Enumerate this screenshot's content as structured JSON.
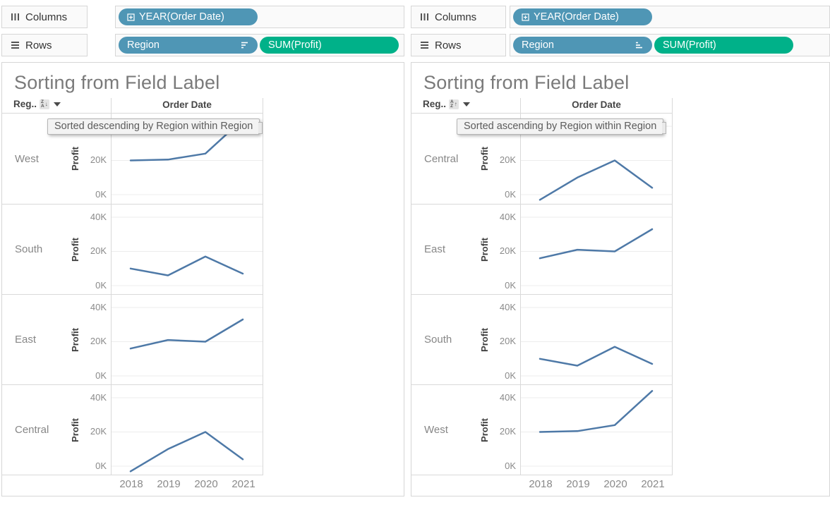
{
  "colors": {
    "pill_blue": "#4f96b5",
    "pill_green": "#00b189",
    "line": "#4e79a7",
    "grid": "#ececec"
  },
  "shelves": {
    "columns_label": "Columns",
    "rows_label": "Rows",
    "year_pill": "YEAR(Order Date)",
    "region_pill": "Region",
    "profit_pill": "SUM(Profit)"
  },
  "panels": [
    {
      "title": "Sorting from Field Label",
      "row_field_header": "Reg..",
      "sort_badge": {
        "top": "Z",
        "bottom": "A",
        "arrow": "↓"
      },
      "sort_direction": "descending",
      "column_header": "Order Date",
      "tooltip": "Sorted descending by Region within Region",
      "region_order": [
        "West",
        "South",
        "East",
        "Central"
      ]
    },
    {
      "title": "Sorting from Field Label",
      "row_field_header": "Reg..",
      "sort_badge": {
        "top": "A",
        "bottom": "Z",
        "arrow": "↑"
      },
      "sort_direction": "ascending",
      "column_header": "Order Date",
      "tooltip": "Sorted ascending by Region within Region",
      "region_order": [
        "Central",
        "East",
        "South",
        "West"
      ]
    }
  ],
  "chart_data": {
    "type": "line",
    "title": "Sorting from Field Label",
    "x": [
      2018,
      2019,
      2020,
      2021
    ],
    "xlabel": "Order Date",
    "ylabel": "Profit",
    "yticks": [
      "40K",
      "20K",
      "0K"
    ],
    "ytick_values": [
      40000,
      20000,
      0
    ],
    "ylim": [
      -6000,
      47000
    ],
    "grid": true,
    "series": [
      {
        "name": "West",
        "values": [
          20000,
          20500,
          24000,
          44000
        ]
      },
      {
        "name": "South",
        "values": [
          10000,
          6000,
          17000,
          7000
        ]
      },
      {
        "name": "East",
        "values": [
          16000,
          21000,
          20000,
          33000
        ]
      },
      {
        "name": "Central",
        "values": [
          -3000,
          10000,
          20000,
          4000
        ]
      }
    ]
  }
}
